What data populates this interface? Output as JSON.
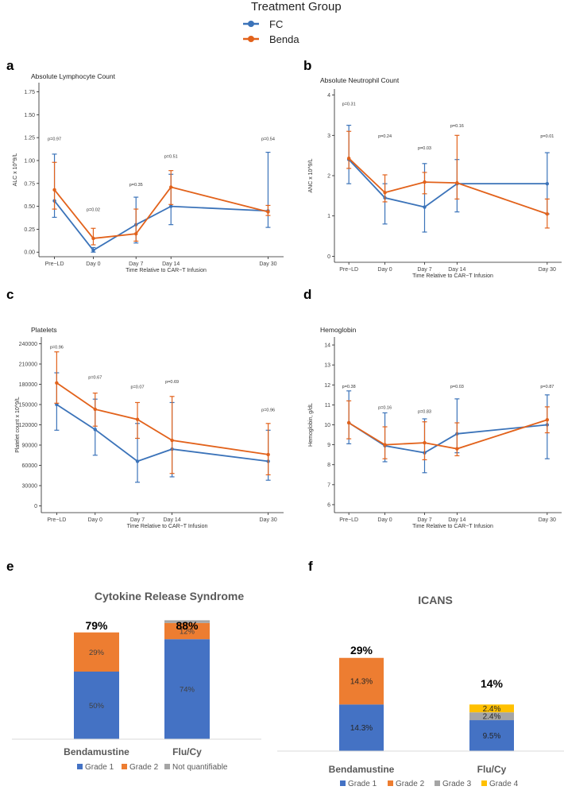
{
  "legend": {
    "title": "Treatment Group",
    "items": [
      {
        "name": "FC",
        "color": "#3B73B9"
      },
      {
        "name": "Benda",
        "color": "#E2621B"
      }
    ]
  },
  "line_panels": [
    {
      "label": "a",
      "title": "Absolute Lymphocyte Count",
      "ylabel": "ALC x 10^9/L",
      "xlabel": "Time Relative to CAR−T Infusion",
      "yticks": [
        "0.00",
        "0.25",
        "0.50",
        "0.75",
        "1.00",
        "1.25",
        "1.50",
        "1.75"
      ],
      "ytick_values": [
        0,
        0.25,
        0.5,
        0.75,
        1.0,
        1.25,
        1.5,
        1.75
      ],
      "ylim": [
        -0.05,
        1.85
      ],
      "categories": [
        "Pre−LD",
        "Day 0",
        "Day 7",
        "Day 14",
        "Day 30"
      ],
      "x": [
        0,
        10,
        21,
        30,
        55
      ],
      "xlim": [
        -4,
        59
      ],
      "series": [
        {
          "name": "FC",
          "values": [
            0.56,
            0.02,
            0.3,
            0.5,
            0.45
          ],
          "lower": [
            0.38,
            0.0,
            0.1,
            0.3,
            0.27
          ],
          "upper": [
            1.07,
            0.05,
            0.6,
            0.85,
            1.09
          ]
        },
        {
          "name": "Benda",
          "values": [
            0.68,
            0.15,
            0.2,
            0.71,
            0.44
          ],
          "lower": [
            0.47,
            0.08,
            0.12,
            0.52,
            0.4
          ],
          "upper": [
            0.98,
            0.26,
            0.47,
            0.89,
            0.51
          ]
        }
      ],
      "pvalues": [
        {
          "x": 0,
          "y": 1.22,
          "text": "p=0.97"
        },
        {
          "x": 10,
          "y": 0.45,
          "text": "p=0.02"
        },
        {
          "x": 21,
          "y": 0.72,
          "text": "p=0.35"
        },
        {
          "x": 30,
          "y": 1.03,
          "text": "p=0.51"
        },
        {
          "x": 55,
          "y": 1.22,
          "text": "p=0.54"
        }
      ]
    },
    {
      "label": "b",
      "title": "Absolute Neutrophil Count",
      "ylabel": "ANC x 10^9/L",
      "xlabel": "Time Relative to CAR−T Infusion",
      "yticks": [
        "0",
        "1",
        "2",
        "3",
        "4"
      ],
      "ytick_values": [
        0,
        1,
        2,
        3,
        4
      ],
      "ylim": [
        -0.15,
        4.15
      ],
      "categories": [
        "Pre−LD",
        "Day 0",
        "Day 7",
        "Day 14",
        "Day 30"
      ],
      "x": [
        0,
        10,
        21,
        30,
        55
      ],
      "xlim": [
        -4,
        59
      ],
      "series": [
        {
          "name": "FC",
          "values": [
            2.4,
            1.45,
            1.22,
            1.8,
            1.8
          ],
          "lower": [
            1.8,
            0.8,
            0.6,
            1.1,
            1.05
          ],
          "upper": [
            3.25,
            1.8,
            2.3,
            2.4,
            2.57
          ]
        },
        {
          "name": "Benda",
          "values": [
            2.43,
            1.58,
            1.84,
            1.82,
            1.05
          ],
          "lower": [
            2.18,
            1.35,
            1.55,
            1.42,
            0.7
          ],
          "upper": [
            3.1,
            2.02,
            2.08,
            3.0,
            1.42
          ]
        }
      ],
      "pvalues": [
        {
          "x": 0,
          "y": 3.75,
          "text": "p=0.31"
        },
        {
          "x": 10,
          "y": 2.95,
          "text": "p=0.24"
        },
        {
          "x": 21,
          "y": 2.65,
          "text": "p=0.03"
        },
        {
          "x": 30,
          "y": 3.2,
          "text": "p=0.16"
        },
        {
          "x": 55,
          "y": 2.95,
          "text": "p=0.01"
        }
      ]
    },
    {
      "label": "c",
      "title": "Platelets",
      "ylabel": "Platelet count x 10^9/L",
      "xlabel": "Time Relative to CAR−T Infusion",
      "yticks": [
        "0",
        "30000",
        "60000",
        "90000",
        "120000",
        "150000",
        "180000",
        "210000",
        "240000"
      ],
      "ytick_values": [
        0,
        30000,
        60000,
        90000,
        120000,
        150000,
        180000,
        210000,
        240000
      ],
      "ylim": [
        -10000,
        250000
      ],
      "categories": [
        "Pre−LD",
        "Day 0",
        "Day 7",
        "Day 14",
        "Day 30"
      ],
      "x": [
        0,
        10,
        21,
        30,
        55
      ],
      "xlim": [
        -4,
        59
      ],
      "series": [
        {
          "name": "FC",
          "values": [
            150000,
            113000,
            66000,
            84000,
            66000
          ],
          "lower": [
            112000,
            75000,
            35000,
            43000,
            38000
          ],
          "upper": [
            197000,
            158000,
            122000,
            153000,
            112000
          ]
        },
        {
          "name": "Benda",
          "values": [
            182000,
            143000,
            128000,
            97000,
            76000
          ],
          "lower": [
            152000,
            118000,
            100000,
            48000,
            46000
          ],
          "upper": [
            228000,
            167000,
            153000,
            162000,
            122000
          ]
        }
      ],
      "pvalues": [
        {
          "x": 0,
          "y": 233000,
          "text": "p=0.96"
        },
        {
          "x": 10,
          "y": 188000,
          "text": "p=0.67"
        },
        {
          "x": 21,
          "y": 174000,
          "text": "p=0.07"
        },
        {
          "x": 30,
          "y": 182000,
          "text": "p=0.69"
        },
        {
          "x": 55,
          "y": 140000,
          "text": "p=0.96"
        }
      ]
    },
    {
      "label": "d",
      "title": "Hemoglobin",
      "ylabel": "Hemoglobin, g/dL",
      "xlabel": "Time Relative to CAR−T Infusion",
      "yticks": [
        "6",
        "7",
        "8",
        "9",
        "10",
        "11",
        "12",
        "13",
        "14"
      ],
      "ytick_values": [
        6,
        7,
        8,
        9,
        10,
        11,
        12,
        13,
        14
      ],
      "ylim": [
        5.6,
        14.4
      ],
      "categories": [
        "Pre−LD",
        "Day 0",
        "Day 7",
        "Day 14",
        "Day 30"
      ],
      "x": [
        0,
        10,
        21,
        30,
        55
      ],
      "xlim": [
        -4,
        59
      ],
      "series": [
        {
          "name": "FC",
          "values": [
            10.1,
            8.95,
            8.6,
            9.55,
            10.0
          ],
          "lower": [
            9.05,
            8.15,
            7.6,
            8.6,
            8.3
          ],
          "upper": [
            11.7,
            10.6,
            10.3,
            11.3,
            11.5
          ]
        },
        {
          "name": "Benda",
          "values": [
            10.1,
            9.0,
            9.1,
            8.8,
            10.25
          ],
          "lower": [
            9.3,
            8.3,
            8.25,
            8.45,
            9.6
          ],
          "upper": [
            11.2,
            9.9,
            10.15,
            10.1,
            10.9
          ]
        }
      ],
      "pvalues": [
        {
          "x": 0,
          "y": 11.85,
          "text": "p=0.38"
        },
        {
          "x": 10,
          "y": 10.8,
          "text": "p=0.16"
        },
        {
          "x": 21,
          "y": 10.6,
          "text": "p=0.83"
        },
        {
          "x": 30,
          "y": 11.85,
          "text": "p=0.03"
        },
        {
          "x": 55,
          "y": 11.85,
          "text": "p=0.87"
        }
      ]
    }
  ],
  "bar_panels": [
    {
      "label": "e",
      "title": "Cytokine Release Syndrome",
      "categories": [
        "Bendamustine",
        "Flu/Cy"
      ],
      "totals": [
        "79%",
        "88%"
      ],
      "series": [
        {
          "name": "Grade 1",
          "color": "#4472C4",
          "values": [
            50,
            74
          ],
          "labels": [
            "50%",
            "74%"
          ]
        },
        {
          "name": "Grade 2",
          "color": "#ED7D31",
          "values": [
            29,
            12
          ],
          "labels": [
            "29%",
            "12%"
          ]
        },
        {
          "name": "Not quantifiable",
          "color": "#A5A5A5",
          "values": [
            0,
            2
          ],
          "labels": [
            "",
            ""
          ]
        }
      ]
    },
    {
      "label": "f",
      "title": "ICANS",
      "categories": [
        "Bendamustine",
        "Flu/Cy"
      ],
      "totals": [
        "29%",
        "14%"
      ],
      "series": [
        {
          "name": "Grade 1",
          "color": "#4472C4",
          "values": [
            14.3,
            9.5
          ],
          "labels": [
            "14.3%",
            "9.5%"
          ]
        },
        {
          "name": "Grade 2",
          "color": "#ED7D31",
          "values": [
            14.3,
            0
          ],
          "labels": [
            "14.3%",
            ""
          ]
        },
        {
          "name": "Grade 3",
          "color": "#A5A5A5",
          "values": [
            0,
            2.4
          ],
          "labels": [
            "",
            "2.4%"
          ]
        },
        {
          "name": "Grade 4",
          "color": "#FFC000",
          "values": [
            0,
            2.4
          ],
          "labels": [
            "",
            "2.4%"
          ]
        }
      ]
    }
  ]
}
